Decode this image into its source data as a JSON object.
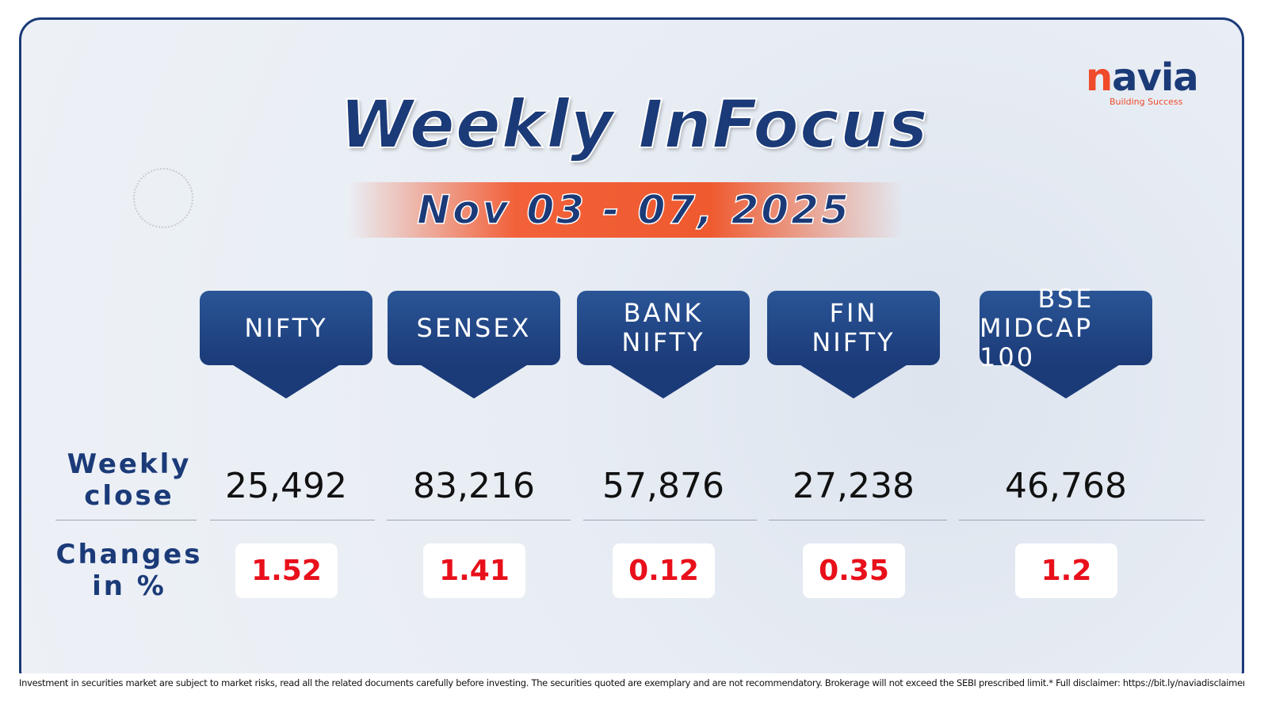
{
  "brand": {
    "name": "navia",
    "tagline": "Building Success"
  },
  "header": {
    "title": "Weekly InFocus",
    "date": "Nov 03 - 07, 2025"
  },
  "table": {
    "columns": [
      [
        "NIFTY"
      ],
      [
        "SENSEX"
      ],
      [
        "BANK",
        "NIFTY"
      ],
      [
        "FIN",
        "NIFTY"
      ],
      [
        "BSE",
        "MIDCAP 100"
      ]
    ],
    "row_labels": [
      [
        "Weekly",
        "close"
      ],
      [
        "Changes",
        "in %"
      ]
    ],
    "rows": [
      [
        "25,492",
        "83,216",
        "57,876",
        "27,238",
        "46,768"
      ],
      [
        "1.52",
        "1.41",
        "0.12",
        "0.35",
        "1.2"
      ]
    ]
  },
  "disclaimer": "Investment in securities market are subject to market risks, read all the related documents carefully before investing. The securities quoted are exemplary and are not recommendatory. Brokerage will not exceed the SEBI prescribed limit.* Full disclaimer: https://bit.ly/naviadisclaimer"
}
